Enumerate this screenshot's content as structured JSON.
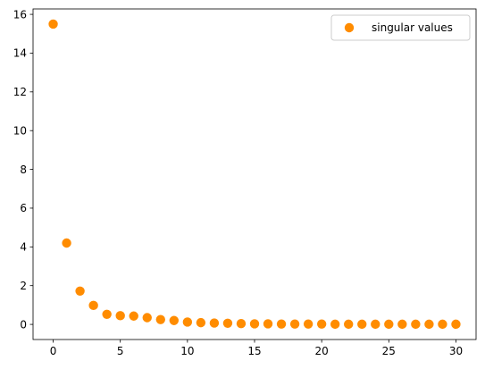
{
  "chart_data": {
    "type": "scatter",
    "title": "",
    "xlabel": "",
    "ylabel": "",
    "xlim": [
      -1.5,
      31.5
    ],
    "ylim": [
      -0.78,
      16.28
    ],
    "x_ticks": [
      0,
      5,
      10,
      15,
      20,
      25,
      30
    ],
    "y_ticks": [
      0,
      2,
      4,
      6,
      8,
      10,
      12,
      14,
      16
    ],
    "grid": false,
    "legend_position": "top-right",
    "series": [
      {
        "name": "singular values",
        "color": "#ff8c00",
        "x": [
          0,
          1,
          2,
          3,
          4,
          5,
          6,
          7,
          8,
          9,
          10,
          11,
          12,
          13,
          14,
          15,
          16,
          17,
          18,
          19,
          20,
          21,
          22,
          23,
          24,
          25,
          26,
          27,
          28,
          29,
          30
        ],
        "y": [
          15.5,
          4.2,
          1.72,
          0.98,
          0.52,
          0.45,
          0.43,
          0.35,
          0.25,
          0.2,
          0.12,
          0.09,
          0.07,
          0.06,
          0.04,
          0.03,
          0.03,
          0.02,
          0.02,
          0.02,
          0.02,
          0.01,
          0.01,
          0.01,
          0.01,
          0.01,
          0.01,
          0.01,
          0.01,
          0.01,
          0.01
        ]
      }
    ]
  }
}
